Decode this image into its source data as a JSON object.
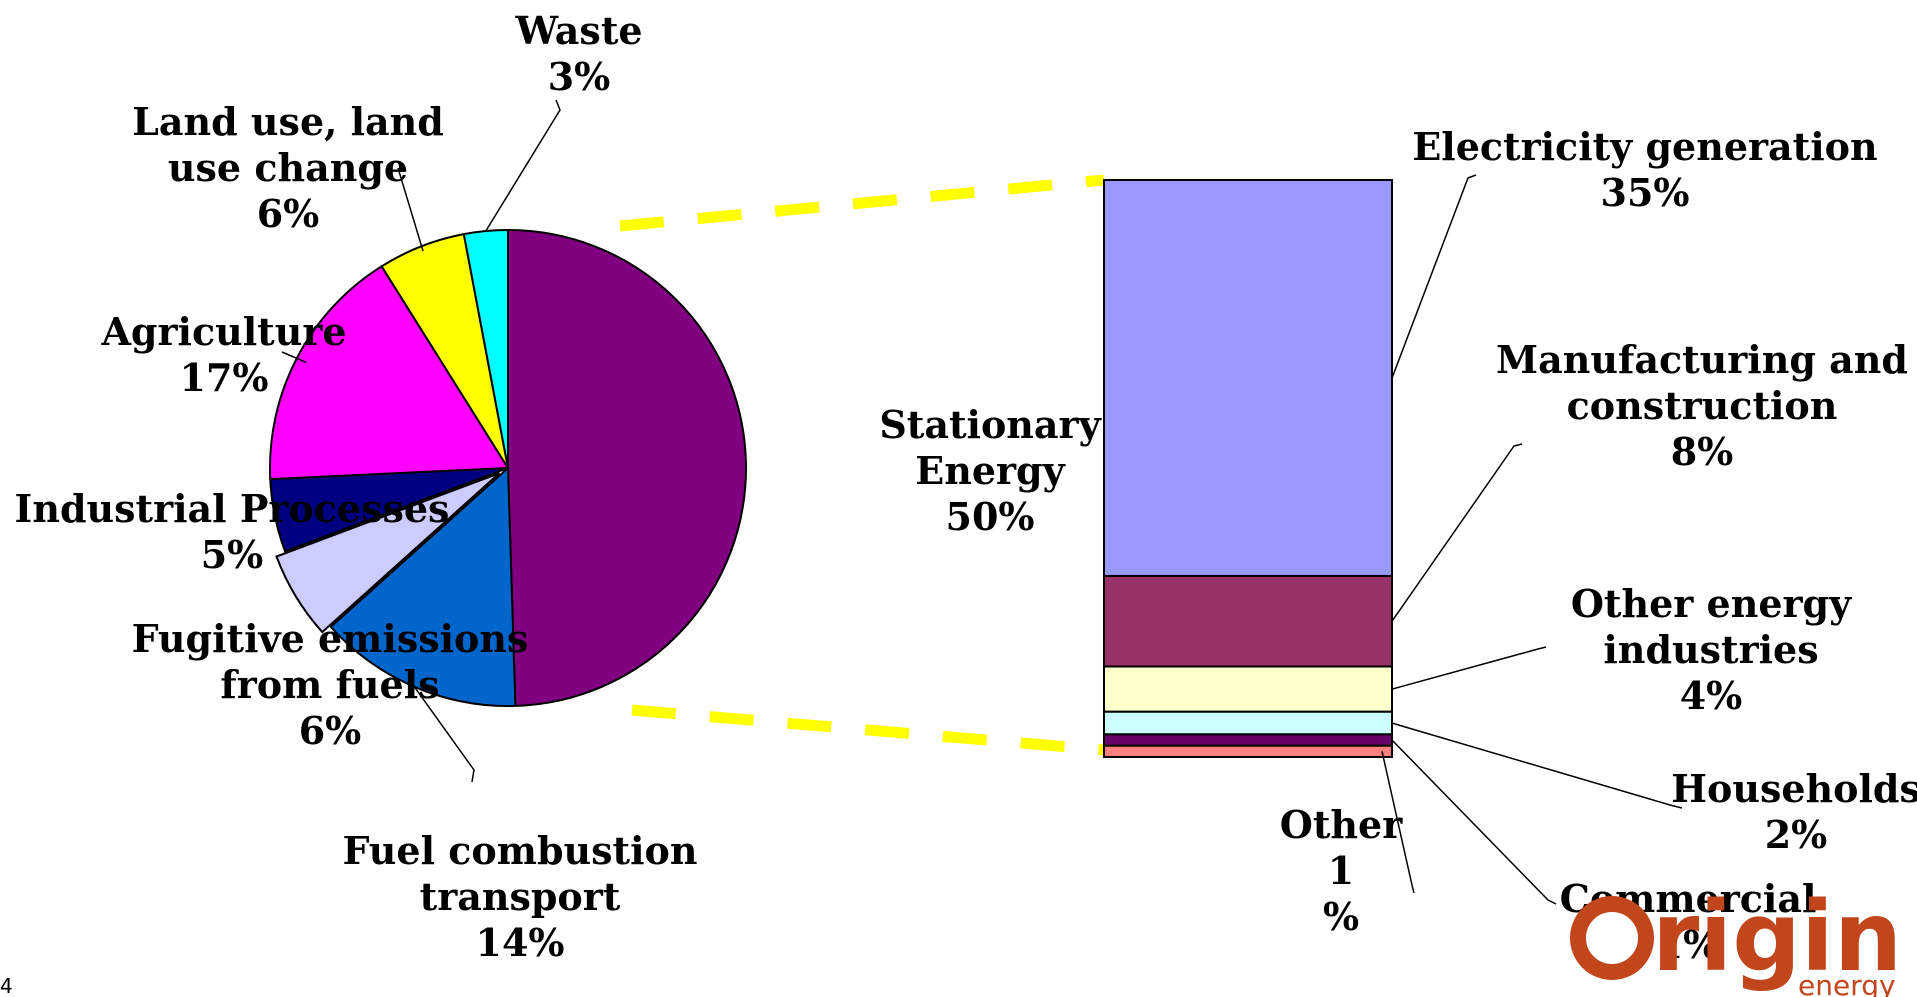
{
  "page_number": "4",
  "logo": {
    "name": "Origin",
    "tagline": "energy",
    "color": "#c2461c"
  },
  "chart_data": {
    "type": "pie",
    "title": "",
    "pie": {
      "slices": [
        {
          "key": "stationary",
          "lines": [
            "Stationary",
            "Energy",
            "50%"
          ],
          "value": 50,
          "color": "#800080"
        },
        {
          "key": "transport",
          "lines": [
            "Fuel combustion",
            "transport",
            "14%"
          ],
          "value": 14,
          "color": "#0066cc"
        },
        {
          "key": "fugitive",
          "lines": [
            "Fugitive emissions",
            "from fuels",
            "6%"
          ],
          "value": 6,
          "color": "#ccccff"
        },
        {
          "key": "industrial",
          "lines": [
            "Industrial Processes",
            "5%"
          ],
          "value": 5,
          "color": "#000080"
        },
        {
          "key": "agriculture",
          "lines": [
            "Agriculture",
            "17%"
          ],
          "value": 17,
          "color": "#ff00ff"
        },
        {
          "key": "landuse",
          "lines": [
            "Land use, land",
            "use change",
            "6%"
          ],
          "value": 6,
          "color": "#ffff00"
        },
        {
          "key": "waste",
          "lines": [
            "Waste",
            "3%"
          ],
          "value": 3,
          "color": "#00ffff"
        }
      ]
    },
    "stack": {
      "title_of": "stationary",
      "segments": [
        {
          "key": "electricity",
          "lines": [
            "Electricity generation",
            "35%"
          ],
          "value": 35,
          "color": "#9999ff"
        },
        {
          "key": "manufacturing",
          "lines": [
            "Manufacturing and",
            "construction",
            "8%"
          ],
          "value": 8,
          "color": "#993366"
        },
        {
          "key": "other_energy",
          "lines": [
            "Other energy",
            "industries",
            "4%"
          ],
          "value": 4,
          "color": "#ffffcc"
        },
        {
          "key": "households",
          "lines": [
            "Households",
            "2%"
          ],
          "value": 2,
          "color": "#ccffff"
        },
        {
          "key": "commercial",
          "lines": [
            "Commercial",
            "1%"
          ],
          "value": 1,
          "color": "#660066"
        },
        {
          "key": "other",
          "lines": [
            "Other",
            "1",
            "%"
          ],
          "value": 1,
          "color": "#ff8080"
        }
      ]
    }
  }
}
